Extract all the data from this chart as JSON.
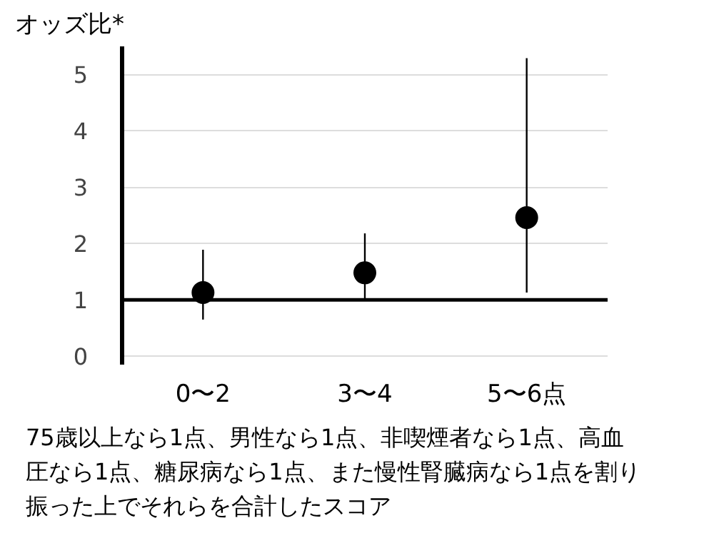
{
  "chart_data": {
    "type": "scatter",
    "ylabel": "オッズ比*",
    "categories": [
      "0〜2",
      "3〜4",
      "5〜6点"
    ],
    "series": [
      {
        "color": "#000000",
        "values": [
          1.13,
          1.48,
          2.46
        ],
        "errors": [
          [
            0.65,
            1.89
          ],
          [
            0.98,
            2.18
          ],
          [
            1.13,
            5.29
          ]
        ]
      }
    ],
    "ylim": [
      -0.15,
      5.5
    ],
    "yticks": [
      0,
      1,
      2,
      3,
      4,
      5
    ],
    "grid": "y",
    "marker": "circle",
    "ref_lines": [
      {
        "axis": "y",
        "value": 1,
        "color": "#000000"
      }
    ],
    "annotations": [
      "75歳以上なら1点、男性なら1点、非喫煙者なら1点、高血圧なら1点、糖尿病なら1点、また慢性腎臓病なら1点を割り振った上でそれらを合計したスコア"
    ]
  }
}
